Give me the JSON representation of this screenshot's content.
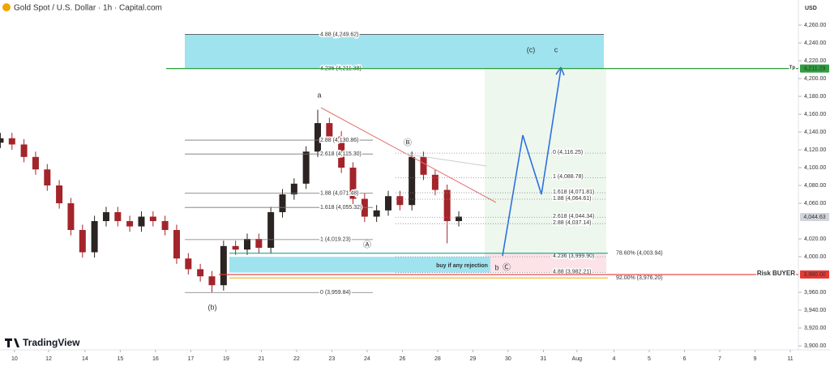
{
  "header": {
    "title": "Gold Spot / U.S. Dollar · 1h · Capital.com",
    "currency": "USD",
    "brand": "TradingView"
  },
  "chart_data": {
    "type": "candlestick",
    "x": [
      -0.4,
      -0.07,
      0.27,
      0.6,
      0.93,
      1.27,
      1.6,
      1.93,
      2.27,
      2.6,
      2.93,
      3.27,
      3.6,
      3.93,
      4.27,
      4.6,
      4.93,
      5.27,
      5.6,
      5.93,
      6.27,
      6.6,
      6.93,
      7.27,
      7.6,
      7.93,
      8.27,
      8.6,
      8.93,
      9.27,
      9.6,
      9.93,
      10.27,
      10.6,
      10.93,
      11.27,
      11.6,
      11.93,
      12.27,
      12.6
    ],
    "open": [
      4128,
      4133,
      4126,
      4112,
      4098,
      4080,
      4060,
      4030,
      4005,
      4040,
      4050,
      4040,
      4034,
      4045,
      4040,
      4030,
      3998,
      3986,
      3978,
      3968,
      4012,
      4008,
      4020,
      4010,
      4050,
      4070,
      4082,
      4118,
      4150,
      4135,
      4100,
      4065,
      4045,
      4052,
      4068,
      4058,
      4112,
      4092,
      4075,
      4040
    ],
    "high": [
      4139,
      4139,
      4132,
      4118,
      4104,
      4086,
      4066,
      4036,
      4046,
      4056,
      4056,
      4046,
      4051,
      4051,
      4046,
      4036,
      4004,
      3992,
      3984,
      4018,
      4018,
      4026,
      4026,
      4056,
      4076,
      4088,
      4124,
      4165,
      4156,
      4141,
      4106,
      4071,
      4058,
      4074,
      4074,
      4118,
      4118,
      4098,
      4081,
      4051
    ],
    "low": [
      4122,
      4120,
      4106,
      4092,
      4074,
      4054,
      4024,
      3999,
      3999,
      4034,
      4034,
      4028,
      4028,
      4034,
      4024,
      3992,
      3980,
      3972,
      3960,
      3962,
      4002,
      4002,
      4004,
      4004,
      4044,
      4064,
      4076,
      4112,
      4129,
      4094,
      4059,
      4039,
      4039,
      4046,
      4052,
      4052,
      4086,
      4069,
      4015,
      4034
    ],
    "close": [
      4133,
      4126,
      4112,
      4098,
      4080,
      4060,
      4030,
      4005,
      4040,
      4050,
      4040,
      4034,
      4045,
      4040,
      4030,
      3998,
      3986,
      3978,
      3968,
      4012,
      4008,
      4020,
      4010,
      4050,
      4070,
      4082,
      4118,
      4150,
      4135,
      4100,
      4065,
      4045,
      4052,
      4068,
      4058,
      4112,
      4092,
      4075,
      4040,
      4045
    ],
    "up_color": "#2b2422",
    "down_color": "#a3242a",
    "xlim": [
      -0.41,
      22.23
    ],
    "xticks": [
      {
        "value": 0,
        "label": "10"
      },
      {
        "value": 0.97,
        "label": "12"
      },
      {
        "value": 2,
        "label": "14"
      },
      {
        "value": 3,
        "label": "15"
      },
      {
        "value": 4,
        "label": "16"
      },
      {
        "value": 5,
        "label": "17"
      },
      {
        "value": 6,
        "label": "19"
      },
      {
        "value": 7,
        "label": "21"
      },
      {
        "value": 8,
        "label": "22"
      },
      {
        "value": 9,
        "label": "23"
      },
      {
        "value": 10,
        "label": "24"
      },
      {
        "value": 11,
        "label": "26"
      },
      {
        "value": 12,
        "label": "28"
      },
      {
        "value": 13,
        "label": "29"
      },
      {
        "value": 14,
        "label": "30"
      },
      {
        "value": 15,
        "label": "31"
      },
      {
        "value": 15.95,
        "label": "Aug"
      },
      {
        "value": 17,
        "label": "4"
      },
      {
        "value": 18,
        "label": "5"
      },
      {
        "value": 19,
        "label": "6"
      },
      {
        "value": 20,
        "label": "7"
      },
      {
        "value": 21,
        "label": "9"
      },
      {
        "value": 22,
        "label": "11"
      }
    ],
    "ylim": [
      3895.5,
      4288.2
    ],
    "yticks": [
      {
        "value": 4260,
        "label": "4,260.00"
      },
      {
        "value": 4240,
        "label": "4,240.00"
      },
      {
        "value": 4220,
        "label": "4,220.00"
      },
      {
        "value": 4200,
        "label": "4,200.00"
      },
      {
        "value": 4180,
        "label": "4,180.00"
      },
      {
        "value": 4160,
        "label": "4,160.00"
      },
      {
        "value": 4140,
        "label": "4,140.00"
      },
      {
        "value": 4120,
        "label": "4,120.00"
      },
      {
        "value": 4100,
        "label": "4,100.00"
      },
      {
        "value": 4080,
        "label": "4,080.00"
      },
      {
        "value": 4060,
        "label": "4,060.00"
      },
      {
        "value": 4020,
        "label": "4,020.00"
      },
      {
        "value": 4000,
        "label": "4,000.00"
      },
      {
        "value": 3960,
        "label": "3,960.00"
      },
      {
        "value": 3940,
        "label": "3,940.00"
      },
      {
        "value": 3920,
        "label": "3,920.00"
      },
      {
        "value": 3900,
        "label": "3,900.00"
      }
    ],
    "fib_left": [
      {
        "label": "4.88 (4,249.62)",
        "value": 4249.62
      },
      {
        "label": "4.236 (4,211.38)",
        "value": 4211.38
      },
      {
        "label": "2.88 (4,130.86)",
        "value": 4130.86
      },
      {
        "label": "2.618 (4,115.30)",
        "value": 4115.3
      },
      {
        "label": "1.88 (4,071.48)",
        "value": 4071.48
      },
      {
        "label": "1.618 (4,055.32)",
        "value": 4055.32
      },
      {
        "label": "1 (4,019.23)",
        "value": 4019.23
      },
      {
        "label": "0 (3,959.84)",
        "value": 3959.84
      }
    ],
    "fib_right": [
      {
        "label": "0 (4,116.25)",
        "value": 4116.25
      },
      {
        "label": "1 (4,088.78)",
        "value": 4088.78
      },
      {
        "label": "1.618 (4,071.81)",
        "value": 4071.81
      },
      {
        "label": "1.88 (4,064.61)",
        "value": 4064.61
      },
      {
        "label": "2.618 (4,044.34)",
        "value": 4044.34
      },
      {
        "label": "2.88 (4,037.14)",
        "value": 4037.14
      },
      {
        "label": "4.236 (3,999.90)",
        "value": 3999.9
      },
      {
        "label": "4.88 (3,982.21)",
        "value": 3982.21
      }
    ],
    "retracements": [
      {
        "label": "78.60% (4,003.94)",
        "value": 4003.94,
        "color": "#089981"
      },
      {
        "label": "92.00% (3,976.20)",
        "value": 3976.2,
        "color": "#f7a600"
      }
    ],
    "lines": [
      {
        "label": "Tp",
        "value": 4211.29,
        "tag": "4,211.29",
        "color": "#2e9e3e"
      },
      {
        "label": "Risk BUYER",
        "value": 3980,
        "tag": "3,980.00",
        "color": "#e53935"
      }
    ],
    "last_price": {
      "value": 4044.63,
      "label": "4,044.63"
    },
    "waves": [
      "a",
      "(b)",
      "b",
      "(c)",
      "c",
      "Ⓐ",
      "Ⓑ",
      "Ⓒ"
    ],
    "note": "buy if any rejection"
  }
}
